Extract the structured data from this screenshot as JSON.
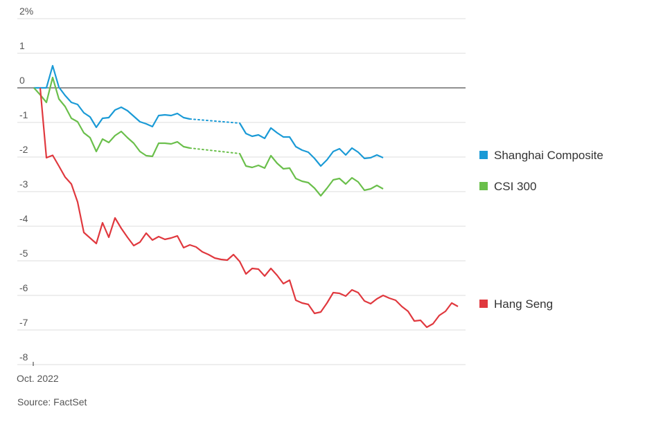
{
  "chart_data": {
    "type": "line",
    "categories": [
      "Oct. 2022",
      null,
      null,
      null,
      null,
      null,
      null,
      null,
      null,
      null,
      null,
      null,
      null,
      null,
      null,
      null,
      null,
      null,
      null,
      null,
      null,
      null,
      null,
      null,
      null,
      null,
      null,
      null,
      null,
      null,
      null,
      null,
      null,
      null,
      null,
      null,
      null,
      null,
      null,
      null,
      null,
      null,
      null,
      null,
      null,
      null,
      null,
      null,
      null,
      null,
      null,
      null,
      null,
      null,
      null,
      null,
      null,
      null,
      null,
      null,
      null,
      null,
      null,
      null,
      null,
      null,
      null,
      null,
      null
    ],
    "series": [
      {
        "name": "Shanghai Composite",
        "color": "#1a9ad6",
        "values": [
          0,
          0,
          0,
          0.64,
          0.02,
          -0.22,
          -0.42,
          -0.48,
          -0.72,
          -0.84,
          -1.14,
          -0.88,
          -0.86,
          -0.64,
          -0.56,
          -0.66,
          -0.82,
          -0.98,
          -1.04,
          -1.12,
          -0.8,
          -0.78,
          -0.8,
          -0.74,
          -0.86,
          -0.9,
          null,
          null,
          null,
          null,
          null,
          null,
          null,
          -1.02,
          -1.32,
          -1.4,
          -1.36,
          -1.46,
          -1.16,
          -1.3,
          -1.42,
          -1.42,
          -1.7,
          -1.8,
          -1.86,
          -2.04,
          -2.26,
          -2.08,
          -1.84,
          -1.76,
          -1.94,
          -1.74,
          -1.86,
          -2.04,
          -2.02,
          -1.94,
          -2.02,
          null,
          null,
          null,
          null,
          null,
          null,
          null,
          null,
          null,
          null,
          null,
          null
        ]
      },
      {
        "name": "CSI 300",
        "color": "#6abf4b",
        "values": [
          0,
          -0.2,
          -0.42,
          0.3,
          -0.32,
          -0.54,
          -0.88,
          -0.98,
          -1.3,
          -1.44,
          -1.84,
          -1.48,
          -1.58,
          -1.38,
          -1.26,
          -1.44,
          -1.6,
          -1.84,
          -1.96,
          -1.98,
          -1.6,
          -1.6,
          -1.62,
          -1.56,
          -1.7,
          -1.74,
          null,
          null,
          null,
          null,
          null,
          null,
          null,
          -1.9,
          -2.26,
          -2.3,
          -2.24,
          -2.32,
          -1.96,
          -2.18,
          -2.34,
          -2.32,
          -2.62,
          -2.7,
          -2.74,
          -2.9,
          -3.12,
          -2.9,
          -2.66,
          -2.62,
          -2.78,
          -2.6,
          -2.72,
          -2.96,
          -2.92,
          -2.82,
          -2.92,
          null,
          null,
          null,
          null,
          null,
          null,
          null,
          null,
          null,
          null,
          null,
          null
        ]
      },
      {
        "name": "Hang Seng",
        "color": "#e0383e",
        "values": [
          null,
          0,
          -2.02,
          -1.95,
          -2.26,
          -2.58,
          -2.78,
          -3.3,
          -4.18,
          -4.34,
          -4.5,
          -3.9,
          -4.32,
          -3.76,
          -4.06,
          -4.32,
          -4.56,
          -4.46,
          -4.2,
          -4.4,
          -4.3,
          -4.38,
          -4.34,
          -4.28,
          -4.62,
          -4.54,
          -4.6,
          -4.74,
          -4.82,
          -4.92,
          -4.96,
          -4.98,
          -4.82,
          -5.02,
          -5.38,
          -5.22,
          -5.24,
          -5.44,
          -5.22,
          -5.42,
          -5.66,
          -5.56,
          -6.14,
          -6.22,
          -6.26,
          -6.52,
          -6.48,
          -6.22,
          -5.92,
          -5.94,
          -6.02,
          -5.84,
          -5.92,
          -6.16,
          -6.24,
          -6.1,
          -6.0,
          -6.08,
          -6.14,
          -6.32,
          -6.46,
          -6.74,
          -6.72,
          -6.92,
          -6.82,
          -6.58,
          -6.46,
          -6.22,
          -6.32
        ]
      }
    ],
    "ylim": [
      -8,
      2
    ],
    "yticks": [
      {
        "value": 2,
        "label": "2%"
      },
      1,
      0,
      -1,
      -2,
      -3,
      -4,
      -5,
      -6,
      -7,
      -8
    ],
    "grid": true,
    "source": "Source: FactSet"
  }
}
